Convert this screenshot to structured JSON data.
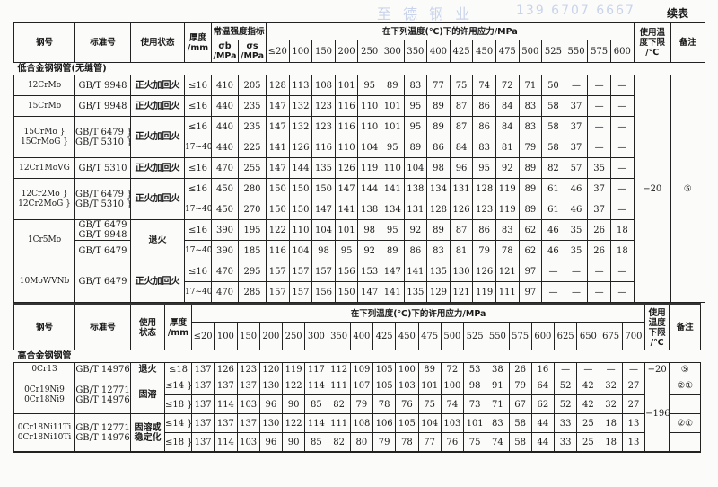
{
  "watermark": {
    "name": "至 德 钢 业",
    "phone": "139 6707 6667"
  },
  "continued_label": "续表",
  "table1": {
    "headers": {
      "steel": "钢号",
      "standard": "标准号",
      "state": "使用状态",
      "thickness": [
        "厚度",
        "/mm"
      ],
      "strength": "常温强度指标",
      "sigma_b": [
        "σb",
        "/MPa"
      ],
      "sigma_s": [
        "σs",
        "/MPa"
      ],
      "stress": "在下列温度(℃)下的许用应力/MPa",
      "limit": [
        "使用温",
        "度下限",
        "/℃"
      ],
      "remark": "备注"
    },
    "temps": [
      "≤20",
      "100",
      "150",
      "200",
      "250",
      "300",
      "350",
      "400",
      "425",
      "450",
      "475",
      "500",
      "525",
      "550",
      "575",
      "600"
    ],
    "section": "低合金钢钢管(无缝管)",
    "limit": "−20",
    "remark": "⑤",
    "groups": [
      {
        "steel": [
          "12CrMo"
        ],
        "standard": [
          "GB/T 9948"
        ],
        "state": "正火加回火",
        "rows": [
          {
            "thickness": "≤16",
            "sb": "410",
            "ss": "205",
            "v": [
              "128",
              "113",
              "108",
              "101",
              "95",
              "89",
              "83",
              "77",
              "75",
              "74",
              "72",
              "71",
              "50",
              "—",
              "—",
              "—"
            ]
          }
        ]
      },
      {
        "steel": [
          "15CrMo"
        ],
        "standard": [
          "GB/T 9948"
        ],
        "state": "正火加回火",
        "rows": [
          {
            "thickness": "≤16",
            "sb": "440",
            "ss": "235",
            "v": [
              "147",
              "132",
              "123",
              "116",
              "110",
              "101",
              "95",
              "89",
              "87",
              "86",
              "84",
              "83",
              "58",
              "37",
              "—",
              "—"
            ]
          }
        ]
      },
      {
        "steel": [
          "15CrMo }",
          "15CrMoG }"
        ],
        "standard": [
          "GB/T 6479 }",
          "GB/T 5310 }"
        ],
        "state": "正火加回火",
        "rows": [
          {
            "thickness": "≤16",
            "sb": "440",
            "ss": "235",
            "v": [
              "147",
              "132",
              "123",
              "116",
              "110",
              "101",
              "95",
              "89",
              "87",
              "86",
              "84",
              "83",
              "58",
              "37",
              "—",
              "—"
            ]
          },
          {
            "thickness": "17~40",
            "sb": "440",
            "ss": "225",
            "v": [
              "141",
              "126",
              "116",
              "110",
              "104",
              "95",
              "89",
              "86",
              "84",
              "83",
              "81",
              "79",
              "58",
              "37",
              "—",
              "—"
            ]
          }
        ]
      },
      {
        "steel": [
          "12Cr1MoVG"
        ],
        "standard": [
          "GB/T 5310"
        ],
        "state": "正火加回火",
        "rows": [
          {
            "thickness": "≤16",
            "sb": "470",
            "ss": "255",
            "v": [
              "147",
              "144",
              "135",
              "126",
              "119",
              "110",
              "104",
              "98",
              "96",
              "95",
              "92",
              "89",
              "82",
              "57",
              "35",
              "—"
            ]
          }
        ]
      },
      {
        "steel": [
          "12Cr2Mo }",
          "12Cr2MoG }"
        ],
        "standard": [
          "GB/T 6479 }",
          "GB/T 5310 }"
        ],
        "state": "正火加回火",
        "rows": [
          {
            "thickness": "≤16",
            "sb": "450",
            "ss": "280",
            "v": [
              "150",
              "150",
              "150",
              "147",
              "144",
              "141",
              "138",
              "134",
              "131",
              "128",
              "119",
              "89",
              "61",
              "46",
              "37",
              "—"
            ]
          },
          {
            "thickness": "17~40",
            "sb": "450",
            "ss": "270",
            "v": [
              "150",
              "150",
              "147",
              "141",
              "138",
              "134",
              "131",
              "128",
              "126",
              "123",
              "119",
              "89",
              "61",
              "46",
              "37",
              "—"
            ]
          }
        ]
      },
      {
        "steel": [
          "1Cr5Mo"
        ],
        "state": "退火",
        "rows": [
          {
            "standard": [
              "GB/T 6479",
              "GB/T 9948"
            ],
            "thickness": "≤16",
            "sb": "390",
            "ss": "195",
            "v": [
              "122",
              "110",
              "104",
              "101",
              "98",
              "95",
              "92",
              "89",
              "87",
              "86",
              "83",
              "62",
              "46",
              "35",
              "26",
              "18"
            ]
          },
          {
            "standard": [
              "GB/T 6479"
            ],
            "thickness": "17~40",
            "sb": "390",
            "ss": "185",
            "v": [
              "116",
              "104",
              "98",
              "95",
              "92",
              "89",
              "86",
              "83",
              "81",
              "79",
              "78",
              "62",
              "46",
              "35",
              "26",
              "18"
            ]
          }
        ]
      },
      {
        "steel": [
          "10MoWVNb"
        ],
        "standard": [
          "GB/T 6479"
        ],
        "state": "正火加回火",
        "rows": [
          {
            "thickness": "≤16",
            "sb": "470",
            "ss": "295",
            "v": [
              "157",
              "157",
              "157",
              "156",
              "153",
              "147",
              "141",
              "135",
              "130",
              "126",
              "121",
              "97",
              "—",
              "—",
              "—",
              "—"
            ]
          },
          {
            "thickness": "17~40",
            "sb": "470",
            "ss": "285",
            "v": [
              "157",
              "157",
              "156",
              "150",
              "147",
              "141",
              "135",
              "129",
              "121",
              "119",
              "111",
              "97",
              "—",
              "—",
              "—",
              "—"
            ]
          }
        ]
      }
    ]
  },
  "table2": {
    "headers": {
      "steel": "钢号",
      "standard": "标准号",
      "state": [
        "使用",
        "状态"
      ],
      "thickness": [
        "厚度",
        "/mm"
      ],
      "stress": "在下列温度(℃)下的许用应力/MPa",
      "limit": [
        "使用",
        "温度",
        "下限",
        "/℃"
      ],
      "remark": "备注"
    },
    "temps": [
      "≤20",
      "100",
      "150",
      "200",
      "250",
      "300",
      "350",
      "400",
      "425",
      "450",
      "475",
      "500",
      "525",
      "550",
      "575",
      "600",
      "625",
      "650",
      "675",
      "700"
    ],
    "section": "高合金钢钢管",
    "groups": [
      {
        "steel": [
          "0Cr13"
        ],
        "standard": [
          "GB/T 14976"
        ],
        "state": [
          "退火"
        ],
        "limit": "−20",
        "remark": "⑤",
        "rows": [
          {
            "thickness": "≤18",
            "v": [
              "137",
              "126",
              "123",
              "120",
              "119",
              "117",
              "112",
              "109",
              "105",
              "100",
              "89",
              "72",
              "53",
              "38",
              "26",
              "16",
              "—",
              "—",
              "—",
              "—"
            ]
          }
        ]
      },
      {
        "steel": [
          "0Cr19Ni9",
          "0Cr18Ni9"
        ],
        "standard": [
          "GB/T 12771",
          "GB/T 14976"
        ],
        "state": [
          "固溶"
        ],
        "remark": "②①",
        "rows": [
          {
            "thickness": "≤14 }",
            "v": [
              "137",
              "137",
              "137",
              "130",
              "122",
              "114",
              "111",
              "107",
              "105",
              "103",
              "101",
              "100",
              "98",
              "91",
              "79",
              "64",
              "52",
              "42",
              "32",
              "27"
            ]
          },
          {
            "thickness": "≤18 }",
            "v": [
              "137",
              "114",
              "103",
              "96",
              "90",
              "85",
              "82",
              "79",
              "78",
              "76",
              "75",
              "74",
              "73",
              "71",
              "67",
              "62",
              "52",
              "42",
              "32",
              "27"
            ]
          }
        ]
      },
      {
        "steel": [
          "0Cr18Ni11Ti",
          "0Cr18Ni10Ti"
        ],
        "standard": [
          "GB/T 12771",
          "GB/T 14976"
        ],
        "state": [
          "固溶或",
          "稳定化"
        ],
        "remark": "②①",
        "rows": [
          {
            "thickness": "≤14 }",
            "v": [
              "137",
              "137",
              "137",
              "130",
              "122",
              "114",
              "111",
              "108",
              "106",
              "105",
              "104",
              "103",
              "101",
              "83",
              "58",
              "44",
              "33",
              "25",
              "18",
              "13"
            ]
          },
          {
            "thickness": "≤18 }",
            "v": [
              "137",
              "114",
              "103",
              "96",
              "90",
              "85",
              "82",
              "80",
              "79",
              "78",
              "77",
              "76",
              "75",
              "74",
              "58",
              "44",
              "33",
              "25",
              "18",
              "13"
            ]
          }
        ]
      }
    ],
    "shared_limit": "−196"
  }
}
